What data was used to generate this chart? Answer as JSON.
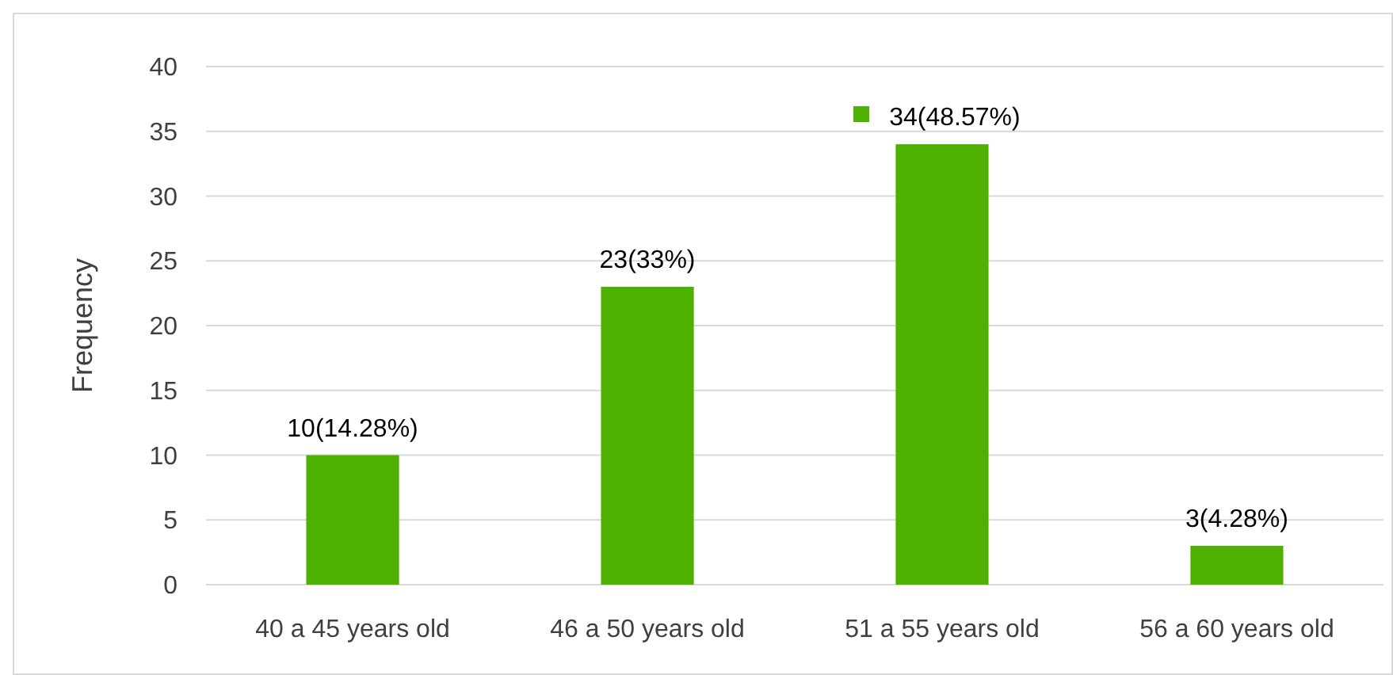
{
  "chart_data": {
    "type": "bar",
    "ylabel": "Frequency",
    "categories": [
      "40 a 45 years old",
      "46 a 50 years old",
      "51 a 55 years old",
      "56 a 60 years old"
    ],
    "values": [
      10,
      23,
      34,
      3
    ],
    "color": "#4eb000",
    "value_labels": [
      "10(14.28%)",
      "23(33%)",
      "34(48.57%)",
      "3(4.28%)"
    ],
    "ylim": [
      0,
      40
    ],
    "yticks": [
      0,
      5,
      10,
      15,
      20,
      25,
      30,
      35,
      40
    ],
    "grid": "y"
  }
}
